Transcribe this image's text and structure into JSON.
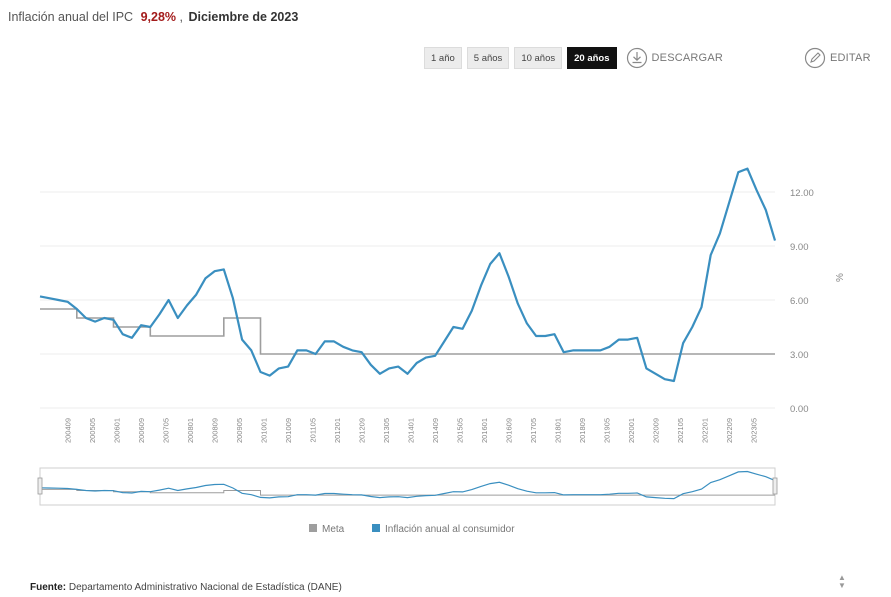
{
  "header": {
    "title": "Inflación anual del IPC",
    "value": "9,28%",
    "separator": ",",
    "date": "Diciembre de 2023"
  },
  "toolbar": {
    "ranges": [
      {
        "label": "1 año",
        "active": false
      },
      {
        "label": "5 años",
        "active": false
      },
      {
        "label": "10 años",
        "active": false
      },
      {
        "label": "20 años",
        "active": true
      }
    ],
    "download_label": "DESCARGAR",
    "edit_label": "EDITAR",
    "download_icon": "download-circle-icon",
    "edit_icon": "pencil-circle-icon"
  },
  "footer": {
    "label": "Fuente:",
    "text": "Departamento Administrativo Nacional de Estadística (DANE)"
  },
  "colors": {
    "inflation_line": "#3a8fc0",
    "meta_line": "#9e9e9e",
    "accent_value": "#a31b1b",
    "active_button": "#111111"
  },
  "chart_data": {
    "type": "line",
    "ylabel": "%",
    "ylim": [
      0,
      13.5
    ],
    "yticks": [
      "0.00",
      "3.00",
      "6.00",
      "9.00",
      "12.00"
    ],
    "y_axis_position": "right",
    "grid": true,
    "legend_position": "bottom",
    "x_range": [
      "2003-12",
      "2023-12"
    ],
    "x_tick_labels": [
      "200409",
      "200505",
      "200601",
      "200609",
      "200705",
      "200801",
      "200809",
      "200905",
      "201001",
      "201009",
      "201105",
      "201201",
      "201209",
      "201305",
      "201401",
      "201409",
      "201505",
      "201601",
      "201609",
      "201705",
      "201801",
      "201809",
      "201905",
      "202001",
      "202009",
      "202105",
      "202201",
      "202209",
      "202305"
    ],
    "navigator": true,
    "series": [
      {
        "name": "Meta",
        "color": "#9e9e9e",
        "x": [
          "2003-12",
          "2004-12",
          "2004-12",
          "2005-12",
          "2005-12",
          "2006-12",
          "2006-12",
          "2008-12",
          "2008-12",
          "2009-12",
          "2009-12",
          "2023-12"
        ],
        "y": [
          5.5,
          5.5,
          5.0,
          5.0,
          4.5,
          4.5,
          4.0,
          4.0,
          5.0,
          5.0,
          3.0,
          3.0
        ]
      },
      {
        "name": "Inflación anual al consumidor",
        "color": "#3a8fc0",
        "x": [
          "2003-12",
          "2004-03",
          "2004-06",
          "2004-09",
          "2004-12",
          "2005-03",
          "2005-06",
          "2005-09",
          "2005-12",
          "2006-03",
          "2006-06",
          "2006-09",
          "2006-12",
          "2007-03",
          "2007-06",
          "2007-09",
          "2007-12",
          "2008-03",
          "2008-06",
          "2008-09",
          "2008-12",
          "2009-03",
          "2009-06",
          "2009-09",
          "2009-12",
          "2010-03",
          "2010-06",
          "2010-09",
          "2010-12",
          "2011-03",
          "2011-06",
          "2011-09",
          "2011-12",
          "2012-03",
          "2012-06",
          "2012-09",
          "2012-12",
          "2013-03",
          "2013-06",
          "2013-09",
          "2013-12",
          "2014-03",
          "2014-06",
          "2014-09",
          "2014-12",
          "2015-03",
          "2015-06",
          "2015-09",
          "2015-12",
          "2016-03",
          "2016-06",
          "2016-09",
          "2016-12",
          "2017-03",
          "2017-06",
          "2017-09",
          "2017-12",
          "2018-03",
          "2018-06",
          "2018-09",
          "2018-12",
          "2019-03",
          "2019-06",
          "2019-09",
          "2019-12",
          "2020-03",
          "2020-06",
          "2020-09",
          "2020-12",
          "2021-03",
          "2021-06",
          "2021-09",
          "2021-12",
          "2022-03",
          "2022-06",
          "2022-09",
          "2022-12",
          "2023-03",
          "2023-06",
          "2023-09",
          "2023-12"
        ],
        "y": [
          6.2,
          6.1,
          6.0,
          5.9,
          5.5,
          5.0,
          4.8,
          5.0,
          4.9,
          4.1,
          3.9,
          4.6,
          4.5,
          5.2,
          6.0,
          5.0,
          5.7,
          6.3,
          7.2,
          7.6,
          7.7,
          6.1,
          3.8,
          3.2,
          2.0,
          1.8,
          2.2,
          2.3,
          3.2,
          3.2,
          3.0,
          3.7,
          3.7,
          3.4,
          3.2,
          3.1,
          2.4,
          1.9,
          2.2,
          2.3,
          1.9,
          2.5,
          2.8,
          2.9,
          3.7,
          4.5,
          4.4,
          5.4,
          6.8,
          8.0,
          8.6,
          7.3,
          5.8,
          4.7,
          4.0,
          4.0,
          4.1,
          3.1,
          3.2,
          3.2,
          3.2,
          3.2,
          3.4,
          3.8,
          3.8,
          3.9,
          2.2,
          1.9,
          1.6,
          1.5,
          3.6,
          4.5,
          5.6,
          8.5,
          9.7,
          11.4,
          13.1,
          13.3,
          12.1,
          11.0,
          9.3
        ]
      }
    ]
  }
}
